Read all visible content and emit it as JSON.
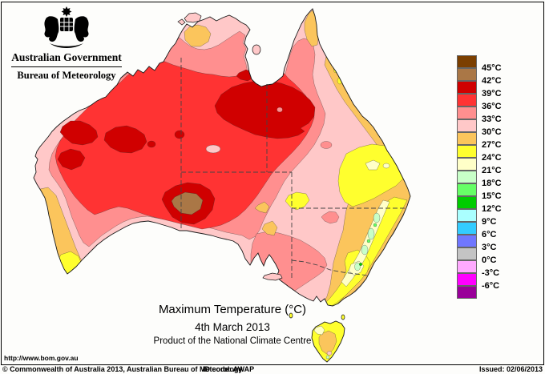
{
  "header": {
    "government": "Australian Government",
    "bureau": "Bureau of Meteorology"
  },
  "titles": {
    "main": "Maximum Temperature (°C)",
    "date": "4th March 2013",
    "product": "Product of the National Climate Centre"
  },
  "footer": {
    "url": "http://www.bom.gov.au",
    "copyright": "© Commonwealth of Australia 2013, Australian Bureau of Meteorology",
    "id_code": "ID code: AWAP",
    "issued": "Issued: 02/06/2013"
  },
  "palette": {
    "b45": "#7B3F00",
    "b42": "#AA7746",
    "b39": "#D00000",
    "b36": "#FF3333",
    "b33": "#FF8F8F",
    "b30": "#FFC8C8",
    "b27": "#FBC55C",
    "b24": "#FFFF2E",
    "b21": "#FFFFC8",
    "b18": "#C8FFC8",
    "b15": "#66FF66",
    "b12": "#00CC00",
    "b9": "#AAFFFF",
    "b6": "#33CCFF",
    "b3": "#7077FF",
    "b0": "#C4C4C4",
    "bm3": "#FFAAFF",
    "bm6": "#FF00FF",
    "bm9": "#990099",
    "coast": "#1a1a1a",
    "border_line": "#444444"
  },
  "legend": {
    "swatch_colors": [
      "#7B3F00",
      "#AA7746",
      "#D00000",
      "#FF3333",
      "#FF8F8F",
      "#FFC8C8",
      "#FBC55C",
      "#FFFF2E",
      "#FFFFC8",
      "#C8FFC8",
      "#66FF66",
      "#00CC00",
      "#AAFFFF",
      "#33CCFF",
      "#7077FF",
      "#C4C4C4",
      "#FFAAFF",
      "#FF00FF",
      "#990099"
    ],
    "boundary_labels": [
      "45°C",
      "42°C",
      "39°C",
      "36°C",
      "33°C",
      "30°C",
      "27°C",
      "24°C",
      "21°C",
      "18°C",
      "15°C",
      "12°C",
      "9°C",
      "6°C",
      "3°C",
      "0°C",
      "-3°C",
      "-6°C"
    ]
  },
  "map_meta": {
    "region": "Australia",
    "quantity": "Maximum Temperature (°C)",
    "hottest_area_band": "42-45°C (northern South Australia)",
    "coolest_area_band": "15-18°C (alpine south-east ranges)"
  }
}
